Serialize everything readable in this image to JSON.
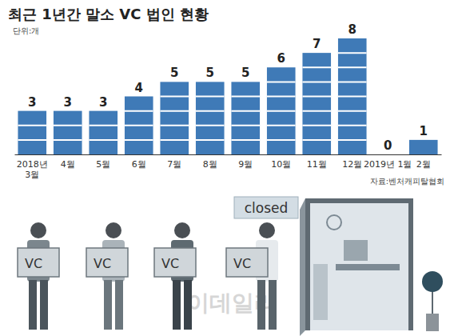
{
  "chart_data": {
    "type": "bar",
    "title": "최근 1년간 말소 VC 법인 현황",
    "subtitle": "단위:개",
    "source": "자료:벤처캐피탈협회",
    "categories": [
      "2018년\n3월",
      "4월",
      "5월",
      "6월",
      "7월",
      "8월",
      "9월",
      "10월",
      "11월",
      "12월",
      "2019년 1월",
      "2월"
    ],
    "values": [
      3,
      3,
      3,
      4,
      5,
      5,
      5,
      6,
      7,
      8,
      0,
      1
    ],
    "color": "#3f7ab7",
    "ylim": [
      0,
      8
    ],
    "grid": false,
    "data_labels": true,
    "tick_labels": "x",
    "annotations": [
      "VC",
      "VC",
      "VC",
      "VC",
      "closed",
      "이데일리"
    ]
  }
}
